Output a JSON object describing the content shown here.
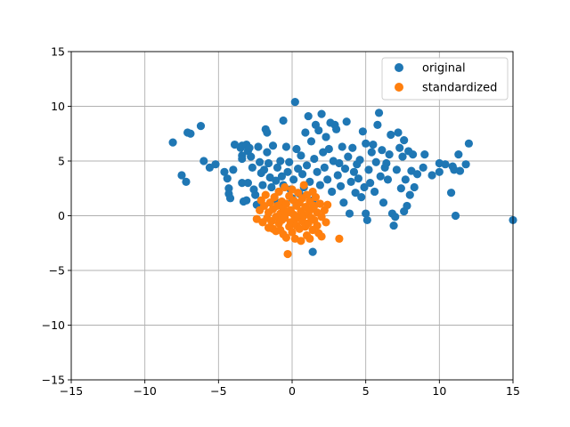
{
  "chart_data": {
    "type": "scatter",
    "title": "",
    "xlabel": "",
    "ylabel": "",
    "xlim": [
      -15,
      15
    ],
    "ylim": [
      -15,
      15
    ],
    "x_ticks": [
      -15,
      -10,
      -5,
      0,
      5,
      10,
      15
    ],
    "y_ticks": [
      -15,
      -10,
      -5,
      0,
      5,
      10,
      15
    ],
    "x_tick_labels": [
      "−15",
      "−10",
      "−5",
      "0",
      "5",
      "10",
      "15"
    ],
    "y_tick_labels": [
      "−15",
      "−10",
      "−5",
      "0",
      "5",
      "10",
      "15"
    ],
    "grid": true,
    "legend_position": "top-right",
    "series": [
      {
        "name": "original",
        "color": "#1f77b4",
        "points": [
          [
            -8.1,
            6.7
          ],
          [
            -7.5,
            3.7
          ],
          [
            -7.2,
            3.1
          ],
          [
            -7.1,
            7.6
          ],
          [
            -6.9,
            7.5
          ],
          [
            -6.2,
            8.2
          ],
          [
            -6.0,
            5.0
          ],
          [
            -5.6,
            4.4
          ],
          [
            -5.2,
            4.7
          ],
          [
            -4.6,
            4.0
          ],
          [
            -4.4,
            3.4
          ],
          [
            -4.3,
            2.5
          ],
          [
            -4.3,
            2.0
          ],
          [
            -4.2,
            1.6
          ],
          [
            -4.0,
            4.2
          ],
          [
            -3.9,
            6.5
          ],
          [
            -3.5,
            6.2
          ],
          [
            -3.4,
            6.4
          ],
          [
            -3.4,
            5.5
          ],
          [
            -3.4,
            5.2
          ],
          [
            -3.4,
            3.0
          ],
          [
            -3.3,
            1.3
          ],
          [
            -3.1,
            6.5
          ],
          [
            -3.1,
            1.4
          ],
          [
            -3.0,
            3.0
          ],
          [
            -3.0,
            5.9
          ],
          [
            -2.9,
            6.2
          ],
          [
            -2.8,
            5.4
          ],
          [
            -2.7,
            4.4
          ],
          [
            -2.6,
            2.4
          ],
          [
            -2.5,
            1.9
          ],
          [
            -2.4,
            1.0
          ],
          [
            -2.3,
            6.3
          ],
          [
            -2.2,
            4.9
          ],
          [
            -2.1,
            3.9
          ],
          [
            -2.0,
            2.8
          ],
          [
            -1.9,
            4.2
          ],
          [
            -1.8,
            7.9
          ],
          [
            -1.7,
            7.6
          ],
          [
            -1.7,
            5.8
          ],
          [
            -1.6,
            4.8
          ],
          [
            -1.5,
            3.5
          ],
          [
            -1.4,
            2.6
          ],
          [
            -1.3,
            6.4
          ],
          [
            -1.2,
            1.5
          ],
          [
            -1.1,
            3.2
          ],
          [
            -1.0,
            4.4
          ],
          [
            -0.9,
            2.2
          ],
          [
            -0.8,
            5.0
          ],
          [
            -0.7,
            3.6
          ],
          [
            -0.6,
            8.7
          ],
          [
            -0.6,
            2.8
          ],
          [
            -0.4,
            6.3
          ],
          [
            -0.3,
            4.0
          ],
          [
            -0.2,
            4.9
          ],
          [
            -0.1,
            2.4
          ],
          [
            0.0,
            1.6
          ],
          [
            0.1,
            3.3
          ],
          [
            0.2,
            10.4
          ],
          [
            0.3,
            6.1
          ],
          [
            0.4,
            4.3
          ],
          [
            0.5,
            2.0
          ],
          [
            0.6,
            5.5
          ],
          [
            0.7,
            3.8
          ],
          [
            0.8,
            2.6
          ],
          [
            0.9,
            7.6
          ],
          [
            1.0,
            4.6
          ],
          [
            1.1,
            9.1
          ],
          [
            1.2,
            3.1
          ],
          [
            1.3,
            6.8
          ],
          [
            1.4,
            1.4
          ],
          [
            1.4,
            -3.3
          ],
          [
            1.5,
            5.2
          ],
          [
            1.6,
            8.3
          ],
          [
            1.7,
            4.0
          ],
          [
            1.8,
            7.8
          ],
          [
            1.9,
            2.8
          ],
          [
            2.0,
            9.3
          ],
          [
            2.1,
            5.8
          ],
          [
            2.2,
            4.4
          ],
          [
            2.3,
            7.2
          ],
          [
            2.4,
            3.3
          ],
          [
            2.5,
            6.1
          ],
          [
            2.6,
            8.5
          ],
          [
            2.7,
            2.2
          ],
          [
            2.8,
            5.0
          ],
          [
            2.9,
            8.3
          ],
          [
            3.0,
            7.9
          ],
          [
            3.1,
            3.7
          ],
          [
            3.2,
            4.8
          ],
          [
            3.3,
            2.7
          ],
          [
            3.4,
            6.3
          ],
          [
            3.5,
            1.2
          ],
          [
            3.6,
            4.3
          ],
          [
            3.7,
            8.6
          ],
          [
            3.8,
            5.4
          ],
          [
            3.9,
            0.2
          ],
          [
            4.0,
            3.1
          ],
          [
            4.1,
            6.2
          ],
          [
            4.2,
            4.0
          ],
          [
            4.3,
            2.1
          ],
          [
            4.4,
            4.7
          ],
          [
            4.5,
            3.4
          ],
          [
            4.6,
            5.1
          ],
          [
            4.7,
            1.7
          ],
          [
            4.8,
            7.7
          ],
          [
            4.9,
            2.6
          ],
          [
            5.0,
            6.6
          ],
          [
            5.0,
            0.2
          ],
          [
            5.1,
            -0.4
          ],
          [
            5.2,
            4.2
          ],
          [
            5.3,
            3.0
          ],
          [
            5.4,
            5.8
          ],
          [
            5.5,
            6.5
          ],
          [
            5.6,
            2.2
          ],
          [
            5.7,
            4.9
          ],
          [
            5.8,
            8.3
          ],
          [
            5.9,
            9.4
          ],
          [
            6.0,
            3.6
          ],
          [
            6.1,
            6.0
          ],
          [
            6.2,
            1.2
          ],
          [
            6.3,
            4.4
          ],
          [
            6.4,
            4.8
          ],
          [
            6.5,
            3.3
          ],
          [
            6.6,
            5.6
          ],
          [
            6.7,
            7.4
          ],
          [
            6.8,
            0.2
          ],
          [
            6.9,
            -0.9
          ],
          [
            7.0,
            -0.1
          ],
          [
            7.1,
            4.2
          ],
          [
            7.2,
            7.6
          ],
          [
            7.3,
            6.2
          ],
          [
            7.4,
            2.5
          ],
          [
            7.5,
            5.4
          ],
          [
            7.6,
            0.4
          ],
          [
            7.6,
            6.9
          ],
          [
            7.7,
            3.3
          ],
          [
            7.8,
            0.9
          ],
          [
            7.9,
            5.9
          ],
          [
            8.0,
            1.9
          ],
          [
            8.1,
            4.1
          ],
          [
            8.2,
            5.6
          ],
          [
            8.3,
            2.6
          ],
          [
            8.5,
            3.8
          ],
          [
            8.9,
            4.4
          ],
          [
            9.0,
            5.6
          ],
          [
            9.5,
            3.7
          ],
          [
            10.0,
            4.0
          ],
          [
            10.0,
            4.8
          ],
          [
            10.4,
            4.7
          ],
          [
            10.8,
            2.1
          ],
          [
            10.9,
            4.5
          ],
          [
            11.0,
            4.2
          ],
          [
            11.1,
            0.0
          ],
          [
            11.3,
            5.6
          ],
          [
            11.4,
            4.1
          ],
          [
            11.8,
            4.7
          ],
          [
            12.0,
            6.6
          ],
          [
            15.0,
            -0.4
          ]
        ]
      },
      {
        "name": "standardized",
        "color": "#ff7f0e",
        "points": [
          [
            -2.4,
            -0.3
          ],
          [
            -2.2,
            0.5
          ],
          [
            -2.1,
            1.4
          ],
          [
            -2.0,
            -0.6
          ],
          [
            -1.9,
            0.9
          ],
          [
            -1.8,
            1.9
          ],
          [
            -1.7,
            -0.2
          ],
          [
            -1.6,
            0.3
          ],
          [
            -1.6,
            -1.1
          ],
          [
            -1.5,
            1.2
          ],
          [
            -1.4,
            -0.5
          ],
          [
            -1.3,
            0.6
          ],
          [
            -1.3,
            -1.2
          ],
          [
            -1.2,
            1.7
          ],
          [
            -1.1,
            -0.1
          ],
          [
            -1.1,
            -1.4
          ],
          [
            -1.0,
            0.9
          ],
          [
            -0.9,
            -0.7
          ],
          [
            -0.9,
            2.2
          ],
          [
            -0.8,
            0.2
          ],
          [
            -0.8,
            -1.3
          ],
          [
            -0.7,
            1.3
          ],
          [
            -0.7,
            -0.4
          ],
          [
            -0.6,
            0.7
          ],
          [
            -0.6,
            -1.7
          ],
          [
            -0.5,
            2.6
          ],
          [
            -0.5,
            -0.2
          ],
          [
            -0.4,
            1.1
          ],
          [
            -0.4,
            -2.0
          ],
          [
            -0.3,
            0.3
          ],
          [
            -0.3,
            -3.5
          ],
          [
            -0.2,
            1.8
          ],
          [
            -0.2,
            -1.0
          ],
          [
            -0.1,
            0.5
          ],
          [
            -0.1,
            -0.6
          ],
          [
            0.0,
            2.4
          ],
          [
            0.0,
            -1.5
          ],
          [
            0.1,
            0.1
          ],
          [
            0.1,
            1.4
          ],
          [
            0.2,
            -0.3
          ],
          [
            0.2,
            -2.1
          ],
          [
            0.3,
            0.9
          ],
          [
            0.3,
            -0.9
          ],
          [
            0.4,
            2.1
          ],
          [
            0.4,
            -0.1
          ],
          [
            0.5,
            1.2
          ],
          [
            0.5,
            -1.2
          ],
          [
            0.6,
            0.4
          ],
          [
            0.6,
            -2.3
          ],
          [
            0.7,
            1.6
          ],
          [
            0.7,
            -0.5
          ],
          [
            0.8,
            0.0
          ],
          [
            0.8,
            2.8
          ],
          [
            0.9,
            -1.0
          ],
          [
            0.9,
            0.8
          ],
          [
            1.0,
            -1.8
          ],
          [
            1.0,
            1.9
          ],
          [
            1.1,
            0.2
          ],
          [
            1.1,
            -0.7
          ],
          [
            1.2,
            1.3
          ],
          [
            1.2,
            -2.1
          ],
          [
            1.3,
            0.6
          ],
          [
            1.3,
            -0.2
          ],
          [
            1.4,
            2.2
          ],
          [
            1.4,
            -1.3
          ],
          [
            1.5,
            0.9
          ],
          [
            1.5,
            -0.4
          ],
          [
            1.6,
            1.7
          ],
          [
            1.7,
            -0.9
          ],
          [
            1.7,
            0.3
          ],
          [
            1.8,
            -1.6
          ],
          [
            1.9,
            1.1
          ],
          [
            2.0,
            -0.1
          ],
          [
            2.0,
            -1.9
          ],
          [
            2.2,
            0.5
          ],
          [
            2.3,
            -0.6
          ],
          [
            2.4,
            1.0
          ],
          [
            3.2,
            -2.1
          ]
        ]
      }
    ]
  }
}
